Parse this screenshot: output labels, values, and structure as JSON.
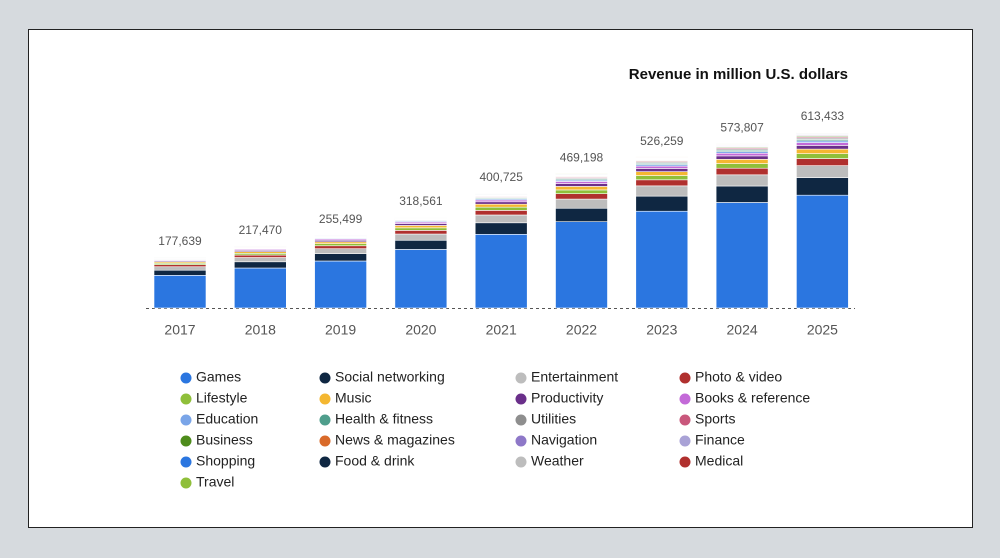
{
  "chart_data": {
    "type": "stacked_bar",
    "title": "Revenue in million U.S. dollars",
    "categories": [
      "2017",
      "2018",
      "2019",
      "2020",
      "2021",
      "2022",
      "2023",
      "2024",
      "2025"
    ],
    "totals": [
      177639,
      217470,
      255499,
      318561,
      400725,
      469198,
      526259,
      573807,
      613433
    ],
    "total_labels": [
      "177,639",
      "217,470",
      "255,499",
      "318,561",
      "400,725",
      "469,198",
      "526,259",
      "573,807",
      "613,433"
    ],
    "series": [
      {
        "name": "Games",
        "color": "#2b76e0",
        "values": [
          113900,
          139400,
          163800,
          204200,
          256900,
          300800,
          337300,
          367800,
          393200
        ]
      },
      {
        "name": "Social networking",
        "color": "#0f2742",
        "values": [
          17800,
          21700,
          25500,
          31900,
          40100,
          46900,
          52600,
          57400,
          61300
        ]
      },
      {
        "name": "Entertainment",
        "color": "#bdbdbd",
        "values": [
          12100,
          14800,
          17400,
          21700,
          27200,
          31900,
          35800,
          39000,
          41700
        ]
      },
      {
        "name": "Photo & video",
        "color": "#b0302e",
        "values": [
          7100,
          8700,
          10200,
          12700,
          16000,
          18800,
          21100,
          23000,
          24500
        ]
      },
      {
        "name": "Lifestyle",
        "color": "#8fbf3a",
        "values": [
          5000,
          6100,
          7200,
          8900,
          11200,
          13100,
          14700,
          16100,
          17200
        ]
      },
      {
        "name": "Music",
        "color": "#f4b731",
        "values": [
          4600,
          5700,
          6600,
          8300,
          10400,
          12200,
          13700,
          14900,
          15900
        ]
      },
      {
        "name": "Productivity",
        "color": "#6a2f8a",
        "values": [
          3700,
          4600,
          5400,
          6700,
          8400,
          9900,
          11100,
          12000,
          12900
        ]
      },
      {
        "name": "Books & reference",
        "color": "#c36ad8",
        "values": [
          2800,
          3500,
          4100,
          5100,
          6400,
          7500,
          8400,
          9200,
          9800
        ]
      },
      {
        "name": "Education",
        "color": "#7aa5e8",
        "values": [
          1800,
          2200,
          2600,
          3200,
          4000,
          4700,
          5300,
          5700,
          6100
        ]
      },
      {
        "name": "Health & fitness",
        "color": "#4f9e8c",
        "values": [
          1400,
          1700,
          2000,
          2500,
          3200,
          3800,
          4200,
          4600,
          4900
        ]
      },
      {
        "name": "Utilities",
        "color": "#8e8e8e",
        "values": [
          1200,
          1500,
          1800,
          2200,
          2800,
          3300,
          3700,
          4000,
          4300
        ]
      },
      {
        "name": "Sports",
        "color": "#c9577c",
        "values": [
          1100,
          1300,
          1500,
          1900,
          2400,
          2800,
          3200,
          3400,
          3700
        ]
      },
      {
        "name": "Business",
        "color": "#4e8c1c",
        "values": [
          900,
          1100,
          1300,
          1600,
          2000,
          2300,
          2600,
          2900,
          3100
        ]
      },
      {
        "name": "News & magazines",
        "color": "#d96a2a",
        "values": [
          700,
          900,
          1000,
          1300,
          1600,
          1900,
          2100,
          2300,
          2500
        ]
      },
      {
        "name": "Navigation",
        "color": "#8e78c8",
        "values": [
          700,
          900,
          1000,
          1300,
          1600,
          1900,
          2100,
          2300,
          2500
        ]
      },
      {
        "name": "Finance",
        "color": "#a9a2d6",
        "values": [
          700,
          900,
          1000,
          1300,
          1600,
          1900,
          2100,
          2300,
          2500
        ]
      },
      {
        "name": "Shopping",
        "color": "#2b76e0",
        "values": [
          500,
          700,
          800,
          1000,
          1200,
          1400,
          1600,
          1700,
          1800
        ]
      },
      {
        "name": "Food & drink",
        "color": "#0f2742",
        "values": [
          500,
          700,
          800,
          1000,
          1200,
          1400,
          1600,
          1700,
          1800
        ]
      },
      {
        "name": "Weather",
        "color": "#bdbdbd",
        "values": [
          400,
          400,
          500,
          600,
          800,
          900,
          1100,
          1100,
          1200
        ]
      },
      {
        "name": "Medical",
        "color": "#b0302e",
        "values": [
          400,
          400,
          500,
          600,
          800,
          900,
          1100,
          1100,
          1200
        ]
      },
      {
        "name": "Travel",
        "color": "#8fbf3a",
        "values": [
          400,
          400,
          500,
          600,
          800,
          900,
          1100,
          1100,
          1200
        ]
      }
    ]
  }
}
